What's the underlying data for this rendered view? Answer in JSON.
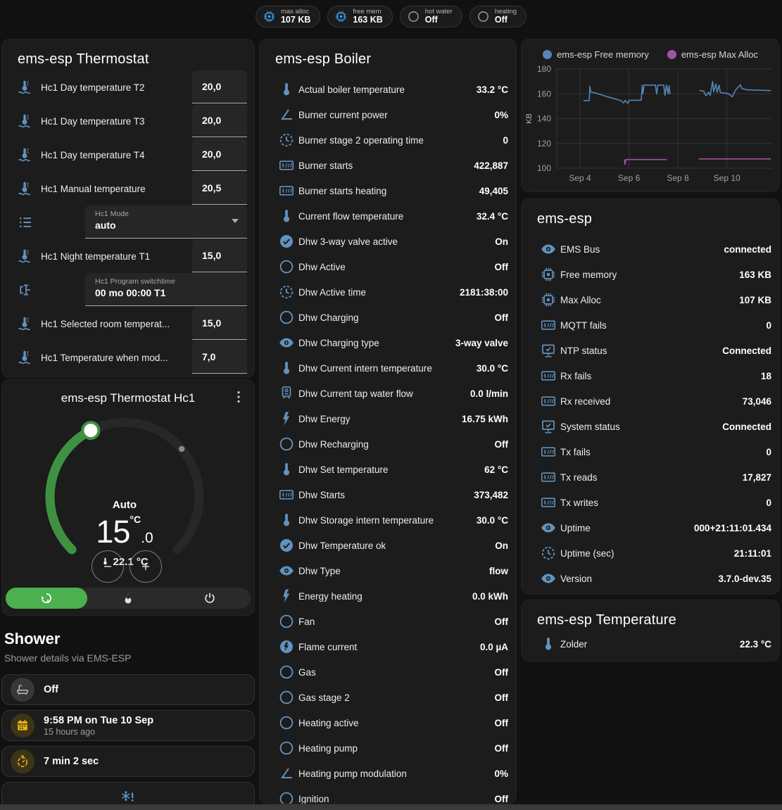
{
  "topbar": {
    "chips": [
      {
        "icon": "chip",
        "icon_color": "#3da5f4",
        "label": "max alloc",
        "value": "107 KB"
      },
      {
        "icon": "chip",
        "icon_color": "#3da5f4",
        "label": "free mem",
        "value": "163 KB"
      },
      {
        "icon": "circle-o",
        "icon_color": "#9e9e9e",
        "label": "hot water",
        "value": "Off"
      },
      {
        "icon": "circle-o",
        "icon_color": "#9e9e9e",
        "label": "heating",
        "value": "Off"
      }
    ]
  },
  "thermostat_card": {
    "title": "ems-esp Thermostat",
    "rows": [
      {
        "type": "number",
        "icon": "thermo-water",
        "label": "Hc1 Day temperature T2",
        "value": "20,0"
      },
      {
        "type": "number",
        "icon": "thermo-water",
        "label": "Hc1 Day temperature T3",
        "value": "20,0"
      },
      {
        "type": "number",
        "icon": "thermo-water",
        "label": "Hc1 Day temperature T4",
        "value": "20,0"
      },
      {
        "type": "number",
        "icon": "thermo-water",
        "label": "Hc1 Manual temperature",
        "value": "20,5"
      },
      {
        "type": "select",
        "icon": "list",
        "label": "Hc1 Mode",
        "value": "auto"
      },
      {
        "type": "number",
        "icon": "thermo-water",
        "label": "Hc1 Night temperature T1",
        "value": "15,0"
      },
      {
        "type": "text",
        "icon": "valve",
        "label": "Hc1 Program switchtime",
        "value": "00 mo 00:00 T1"
      },
      {
        "type": "number",
        "icon": "thermo-water",
        "label": "Hc1 Selected room temperat...",
        "value": "15,0"
      },
      {
        "type": "number",
        "icon": "thermo-water",
        "label": "Hc1 Temperature when mod...",
        "value": "7,0"
      }
    ]
  },
  "hc1_card": {
    "title": "ems-esp Thermostat Hc1",
    "mode_label": "Auto",
    "target_int": "15",
    "target_dec": ".0",
    "unit": "°C",
    "current": "22.1 °C",
    "modes": [
      {
        "icon": "thermostat-auto",
        "selected": true
      },
      {
        "icon": "fire",
        "selected": false
      },
      {
        "icon": "power",
        "selected": false
      }
    ],
    "colors": {
      "active_arc": "#3f9142",
      "track_arc": "#272727",
      "selected_mode": "#4caf50"
    }
  },
  "shower": {
    "heading": "Shower",
    "subtitle": "Shower details via EMS-ESP",
    "cards": [
      {
        "icon": "bathtub",
        "style": "gray",
        "icon_color": "#c9c9c9",
        "title": "Off",
        "subtitle": ""
      },
      {
        "icon": "calendar",
        "style": "amber",
        "icon_color": "#e7b416",
        "title": "9:58 PM on Tue 10 Sep",
        "subtitle": "15 hours ago"
      },
      {
        "icon": "timer",
        "style": "amber",
        "icon_color": "#e7b416",
        "title": "7 min 2 sec",
        "subtitle": ""
      },
      {
        "icon": "snowflake",
        "style": "partial",
        "icon_color": "#5b9bd5",
        "title": "",
        "subtitle": ""
      }
    ]
  },
  "boiler_card": {
    "title": "ems-esp Boiler",
    "rows": [
      {
        "icon": "thermometer",
        "label": "Actual boiler temperature",
        "value": "33.2 °C"
      },
      {
        "icon": "angle",
        "label": "Burner current power",
        "value": "0%"
      },
      {
        "icon": "clock",
        "label": "Burner stage 2 operating time",
        "value": "0"
      },
      {
        "icon": "counter",
        "label": "Burner starts",
        "value": "422,887"
      },
      {
        "icon": "counter",
        "label": "Burner starts heating",
        "value": "49,405"
      },
      {
        "icon": "thermometer",
        "label": "Current flow temperature",
        "value": "32.4 °C"
      },
      {
        "icon": "check-circle",
        "label": "Dhw 3-way valve active",
        "value": "On"
      },
      {
        "icon": "circle-o",
        "label": "Dhw Active",
        "value": "Off"
      },
      {
        "icon": "clock",
        "label": "Dhw Active time",
        "value": "2181:38:00"
      },
      {
        "icon": "circle-o",
        "label": "Dhw Charging",
        "value": "Off"
      },
      {
        "icon": "eye",
        "label": "Dhw Charging type",
        "value": "3-way valve"
      },
      {
        "icon": "thermometer",
        "label": "Dhw Current intern temperature",
        "value": "30.0 °C"
      },
      {
        "icon": "boiler",
        "label": "Dhw Current tap water flow",
        "value": "0.0 l/min"
      },
      {
        "icon": "flash",
        "label": "Dhw Energy",
        "value": "16.75 kWh"
      },
      {
        "icon": "circle-o",
        "label": "Dhw Recharging",
        "value": "Off"
      },
      {
        "icon": "thermometer",
        "label": "Dhw Set temperature",
        "value": "62 °C"
      },
      {
        "icon": "counter",
        "label": "Dhw Starts",
        "value": "373,482"
      },
      {
        "icon": "thermometer",
        "label": "Dhw Storage intern temperature",
        "value": "30.0 °C"
      },
      {
        "icon": "check-circle",
        "label": "Dhw Temperature ok",
        "value": "On"
      },
      {
        "icon": "eye",
        "label": "Dhw Type",
        "value": "flow"
      },
      {
        "icon": "flash",
        "label": "Energy heating",
        "value": "0.0 kWh"
      },
      {
        "icon": "circle-o",
        "label": "Fan",
        "value": "Off"
      },
      {
        "icon": "flash-circle",
        "label": "Flame current",
        "value": "0.0 µA"
      },
      {
        "icon": "circle-o",
        "label": "Gas",
        "value": "Off"
      },
      {
        "icon": "circle-o",
        "label": "Gas stage 2",
        "value": "Off"
      },
      {
        "icon": "circle-o",
        "label": "Heating active",
        "value": "Off"
      },
      {
        "icon": "circle-o",
        "label": "Heating pump",
        "value": "Off"
      },
      {
        "icon": "angle",
        "label": "Heating pump modulation",
        "value": "0%"
      },
      {
        "icon": "circle-o",
        "label": "Ignition",
        "value": "Off"
      }
    ]
  },
  "system_card": {
    "title": "ems-esp",
    "rows": [
      {
        "icon": "eye",
        "label": "EMS Bus",
        "value": "connected"
      },
      {
        "icon": "chip",
        "label": "Free memory",
        "value": "163 KB"
      },
      {
        "icon": "chip",
        "label": "Max Alloc",
        "value": "107 KB"
      },
      {
        "icon": "counter",
        "label": "MQTT fails",
        "value": "0"
      },
      {
        "icon": "monitor",
        "label": "NTP status",
        "value": "Connected"
      },
      {
        "icon": "counter",
        "label": "Rx fails",
        "value": "18"
      },
      {
        "icon": "counter",
        "label": "Rx received",
        "value": "73,046"
      },
      {
        "icon": "monitor",
        "label": "System status",
        "value": "Connected"
      },
      {
        "icon": "counter",
        "label": "Tx fails",
        "value": "0"
      },
      {
        "icon": "counter",
        "label": "Tx reads",
        "value": "17,827"
      },
      {
        "icon": "counter",
        "label": "Tx writes",
        "value": "0"
      },
      {
        "icon": "eye",
        "label": "Uptime",
        "value": "000+21:11:01.434"
      },
      {
        "icon": "clock",
        "label": "Uptime (sec)",
        "value": "21:11:01"
      },
      {
        "icon": "eye",
        "label": "Version",
        "value": "3.7.0-dev.35"
      }
    ]
  },
  "temperature_card": {
    "title": "ems-esp Temperature",
    "rows": [
      {
        "icon": "thermometer",
        "label": "Zolder",
        "value": "22.3 °C"
      }
    ]
  },
  "chart_data": {
    "type": "line",
    "title": "",
    "xlabel": "",
    "ylabel": "KB",
    "grid": true,
    "legend_position": "top",
    "xlim": [
      3.05,
      11.85
    ],
    "ylim": [
      100,
      180
    ],
    "x_ticks": [
      {
        "v": 4,
        "label": "Sep 4"
      },
      {
        "v": 6,
        "label": "Sep 6"
      },
      {
        "v": 8,
        "label": "Sep 8"
      },
      {
        "v": 10,
        "label": "Sep 10"
      }
    ],
    "y_ticks": [
      100,
      120,
      140,
      160,
      180
    ],
    "series": [
      {
        "name": "ems-esp Free memory",
        "color": "#5385b5",
        "segments": [
          [
            [
              4.14,
              154.5
            ],
            [
              4.38,
              154.5
            ],
            [
              4.4,
              166
            ],
            [
              4.44,
              161.5
            ],
            [
              4.7,
              160.3
            ],
            [
              5.0,
              158.3
            ],
            [
              5.3,
              156.6
            ],
            [
              5.55,
              155.2
            ],
            [
              5.7,
              154.2
            ],
            [
              5.78,
              152.6
            ],
            [
              5.85,
              154.8
            ],
            [
              5.95,
              152.3
            ],
            [
              6.02,
              154.8
            ],
            [
              6.5,
              154.8
            ],
            [
              6.54,
              167
            ],
            [
              6.57,
              160.2
            ],
            [
              6.62,
              167
            ],
            [
              7.08,
              167
            ],
            [
              7.13,
              159.8
            ],
            [
              7.18,
              167
            ],
            [
              7.42,
              167
            ],
            [
              7.47,
              158.8
            ],
            [
              7.53,
              167
            ],
            [
              7.6,
              160
            ],
            [
              7.64,
              166.5
            ],
            [
              7.68,
              159.5
            ]
          ],
          [
            [
              8.88,
              162.6
            ],
            [
              9.05,
              162.2
            ],
            [
              9.15,
              158.4
            ],
            [
              9.25,
              161.2
            ],
            [
              9.32,
              158.8
            ],
            [
              9.42,
              170
            ],
            [
              9.46,
              161.6
            ],
            [
              9.55,
              168
            ],
            [
              9.6,
              161.2
            ],
            [
              9.68,
              167
            ],
            [
              9.73,
              161
            ],
            [
              9.88,
              160.6
            ],
            [
              10.05,
              160.2
            ],
            [
              10.22,
              157.6
            ],
            [
              10.35,
              162.8
            ],
            [
              10.55,
              167.2
            ],
            [
              10.62,
              164.2
            ],
            [
              10.8,
              163.2
            ],
            [
              11.8,
              162.6
            ]
          ]
        ]
      },
      {
        "name": "ems-esp Max Alloc",
        "color": "#a052a8",
        "segments": [
          [
            [
              5.82,
              107
            ],
            [
              5.84,
              103
            ],
            [
              5.87,
              107
            ],
            [
              7.55,
              107
            ]
          ],
          [
            [
              8.85,
              107.5
            ],
            [
              11.8,
              107.5
            ]
          ]
        ]
      }
    ]
  }
}
